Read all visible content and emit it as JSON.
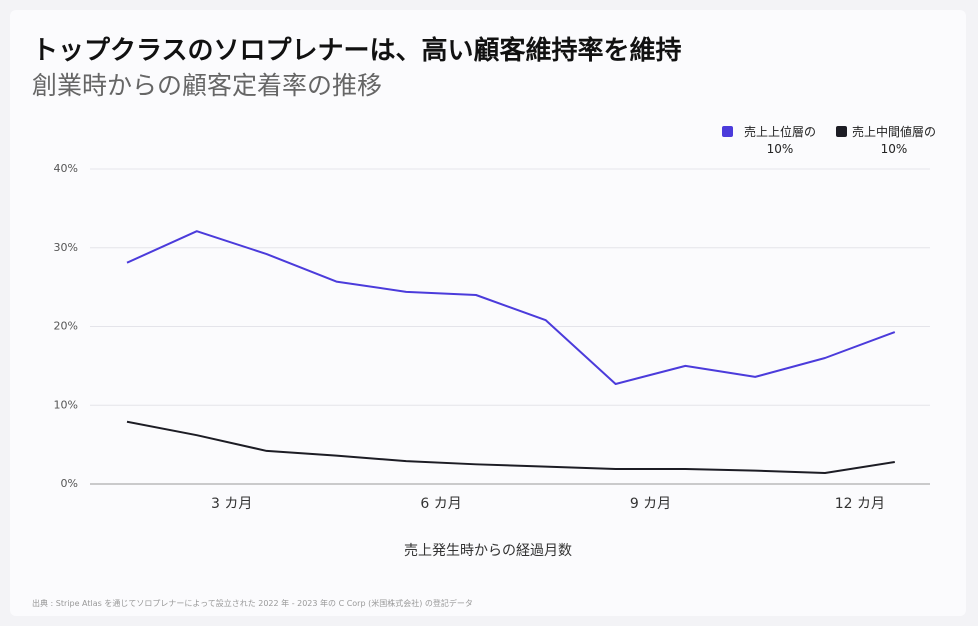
{
  "chart_data": {
    "type": "line",
    "title": "トップクラスのソロプレナーは、高い顧客維持率を維持",
    "subtitle": "創業時からの顧客定着率の推移",
    "x_label": "売上発生時からの経過月数",
    "source": "出典 : Stripe Atlas を通じてソロプレナーによって設立された 2022 年 - 2023 年の C Corp (米国株式会社) の登記データ",
    "categories": [
      null,
      null,
      "3 カ月",
      null,
      null,
      "6 カ月",
      null,
      null,
      "9 カ月",
      null,
      null,
      "12 カ月"
    ],
    "series": [
      {
        "name": "売上上位層の 10%",
        "color": "#4b3bdb",
        "values": [
          28.1,
          32.1,
          29.2,
          25.7,
          24.4,
          24.0,
          20.8,
          12.7,
          15.0,
          13.6,
          16.0,
          19.3
        ]
      },
      {
        "name": "売上中間値層の 10%",
        "color": "#1c1c24",
        "values": [
          7.9,
          6.2,
          4.2,
          3.6,
          2.9,
          2.5,
          2.2,
          1.9,
          1.9,
          1.7,
          1.4,
          2.8
        ]
      }
    ],
    "ylim": [
      0,
      40
    ],
    "yticks": [
      {
        "value": 0,
        "label": "0%"
      },
      {
        "value": 10,
        "label": "10%"
      },
      {
        "value": 20,
        "label": "20%"
      },
      {
        "value": 30,
        "label": "30%"
      },
      {
        "value": 40,
        "label": "40%"
      }
    ],
    "grid": true
  }
}
